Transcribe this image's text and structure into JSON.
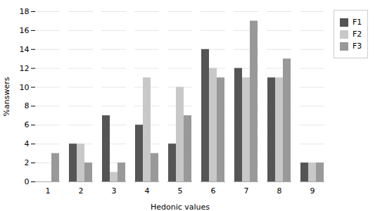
{
  "chart_data": {
    "type": "bar",
    "categories": [
      "1",
      "2",
      "3",
      "4",
      "5",
      "6",
      "7",
      "8",
      "9"
    ],
    "series": [
      {
        "name": "F1",
        "color": "#555555",
        "values": [
          0,
          4,
          7,
          6,
          4,
          14,
          12,
          11,
          2
        ]
      },
      {
        "name": "F2",
        "color": "#c8c8c8",
        "values": [
          0,
          4,
          1,
          11,
          10,
          12,
          11,
          11,
          2
        ]
      },
      {
        "name": "F3",
        "color": "#999999",
        "values": [
          3,
          2,
          2,
          3,
          7,
          11,
          17,
          13,
          2
        ]
      }
    ],
    "xlabel": "Hedonic values",
    "ylabel": "%answers",
    "ylim": [
      0,
      18
    ],
    "yticks": [
      0,
      2,
      4,
      6,
      8,
      10,
      12,
      14,
      16,
      18
    ],
    "grid": true,
    "legend": "right"
  }
}
